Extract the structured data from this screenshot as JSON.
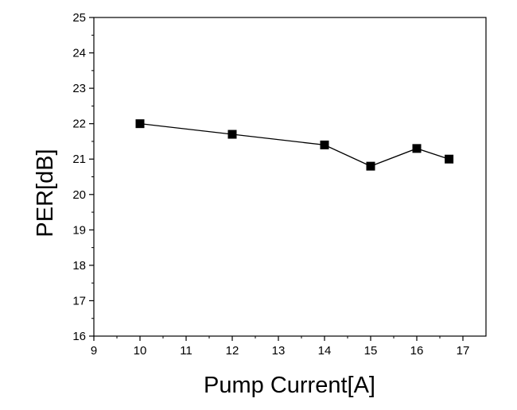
{
  "chart_data": {
    "type": "line",
    "title": "",
    "xlabel": "Pump Current[A]",
    "ylabel": "PER[dB]",
    "xlim": [
      9,
      17.5
    ],
    "ylim": [
      16,
      25
    ],
    "xticks": [
      9,
      10,
      11,
      12,
      13,
      14,
      15,
      16,
      17
    ],
    "yticks": [
      16,
      17,
      18,
      19,
      20,
      21,
      22,
      23,
      24,
      25
    ],
    "grid": false,
    "legend": "none",
    "series": [
      {
        "x": [
          10,
          12,
          14,
          15,
          16,
          16.7
        ],
        "y": [
          22.0,
          21.7,
          21.4,
          20.8,
          21.3,
          21.0
        ],
        "marker": "square",
        "color": "#000000"
      }
    ]
  }
}
